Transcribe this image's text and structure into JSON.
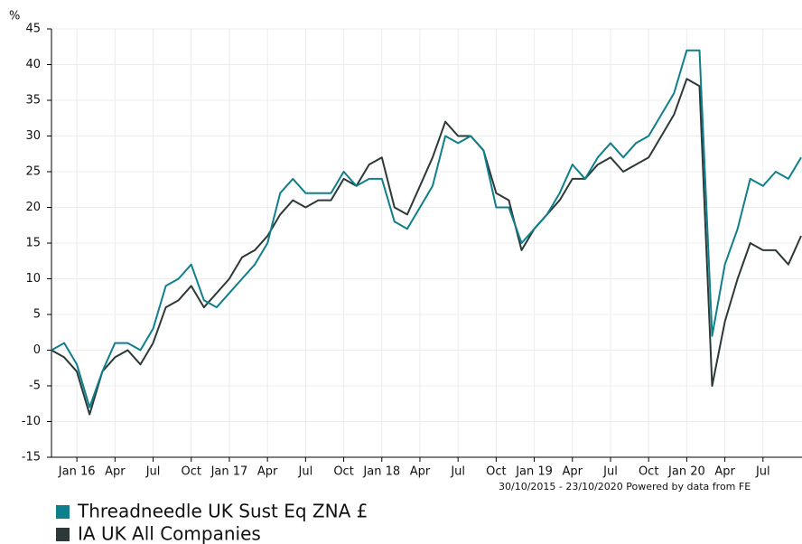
{
  "chart_data": {
    "type": "line",
    "y_label": "%",
    "footnote": "30/10/2015 - 23/10/2020 Powered by data from FE",
    "x": [
      "2015-11",
      "2015-12",
      "2016-01",
      "2016-02",
      "2016-03",
      "2016-04",
      "2016-05",
      "2016-06",
      "2016-07",
      "2016-08",
      "2016-09",
      "2016-10",
      "2016-11",
      "2016-12",
      "2017-01",
      "2017-02",
      "2017-03",
      "2017-04",
      "2017-05",
      "2017-06",
      "2017-07",
      "2017-08",
      "2017-09",
      "2017-10",
      "2017-11",
      "2017-12",
      "2018-01",
      "2018-02",
      "2018-03",
      "2018-04",
      "2018-05",
      "2018-06",
      "2018-07",
      "2018-08",
      "2018-09",
      "2018-10",
      "2018-11",
      "2018-12",
      "2019-01",
      "2019-02",
      "2019-03",
      "2019-04",
      "2019-05",
      "2019-06",
      "2019-07",
      "2019-08",
      "2019-09",
      "2019-10",
      "2019-11",
      "2019-12",
      "2020-01",
      "2020-02",
      "2020-03",
      "2020-04",
      "2020-05",
      "2020-06",
      "2020-07",
      "2020-08",
      "2020-09",
      "2020-10"
    ],
    "series": [
      {
        "name": "Threadneedle UK Sust Eq ZNA £",
        "color": "#0f7f8b",
        "values": [
          0,
          1,
          -2,
          -8,
          -3,
          1,
          1,
          0,
          3,
          9,
          10,
          12,
          7,
          6,
          8,
          10,
          12,
          15,
          22,
          24,
          22,
          22,
          22,
          25,
          23,
          24,
          24,
          18,
          17,
          20,
          23,
          30,
          29,
          30,
          28,
          20,
          20,
          15,
          17,
          19,
          22,
          26,
          24,
          27,
          29,
          27,
          29,
          30,
          33,
          36,
          42,
          42,
          2,
          12,
          17,
          24,
          23,
          25,
          24,
          27
        ]
      },
      {
        "name": "IA UK All Companies",
        "color": "#2c3938",
        "values": [
          0,
          -1,
          -3,
          -9,
          -3,
          -1,
          0,
          -2,
          1,
          6,
          7,
          9,
          6,
          8,
          10,
          13,
          14,
          16,
          19,
          21,
          20,
          21,
          21,
          24,
          23,
          26,
          27,
          20,
          19,
          23,
          27,
          32,
          30,
          30,
          28,
          22,
          21,
          14,
          17,
          19,
          21,
          24,
          24,
          26,
          27,
          25,
          26,
          27,
          30,
          33,
          38,
          37,
          -5,
          4,
          10,
          15,
          14,
          14,
          12,
          16
        ]
      }
    ],
    "xlim": [
      "2015-11",
      "2020-10"
    ],
    "xticks": [
      {
        "value": "2016-01",
        "label": "Jan 16"
      },
      {
        "value": "2016-04",
        "label": "Apr"
      },
      {
        "value": "2016-07",
        "label": "Jul"
      },
      {
        "value": "2016-10",
        "label": "Oct"
      },
      {
        "value": "2017-01",
        "label": "Jan 17"
      },
      {
        "value": "2017-04",
        "label": "Apr"
      },
      {
        "value": "2017-07",
        "label": "Jul"
      },
      {
        "value": "2017-10",
        "label": "Oct"
      },
      {
        "value": "2018-01",
        "label": "Jan 18"
      },
      {
        "value": "2018-04",
        "label": "Apr"
      },
      {
        "value": "2018-07",
        "label": "Jul"
      },
      {
        "value": "2018-10",
        "label": "Oct"
      },
      {
        "value": "2019-01",
        "label": "Jan 19"
      },
      {
        "value": "2019-04",
        "label": "Apr"
      },
      {
        "value": "2019-07",
        "label": "Jul"
      },
      {
        "value": "2019-10",
        "label": "Oct"
      },
      {
        "value": "2020-01",
        "label": "Jan 20"
      },
      {
        "value": "2020-04",
        "label": "Apr"
      },
      {
        "value": "2020-07",
        "label": "Jul"
      }
    ],
    "ylim": [
      -15,
      45
    ],
    "yticks": [
      -15,
      -10,
      -5,
      0,
      5,
      10,
      15,
      20,
      25,
      30,
      35,
      40,
      45
    ],
    "grid": true,
    "legend": "bottom-left"
  }
}
